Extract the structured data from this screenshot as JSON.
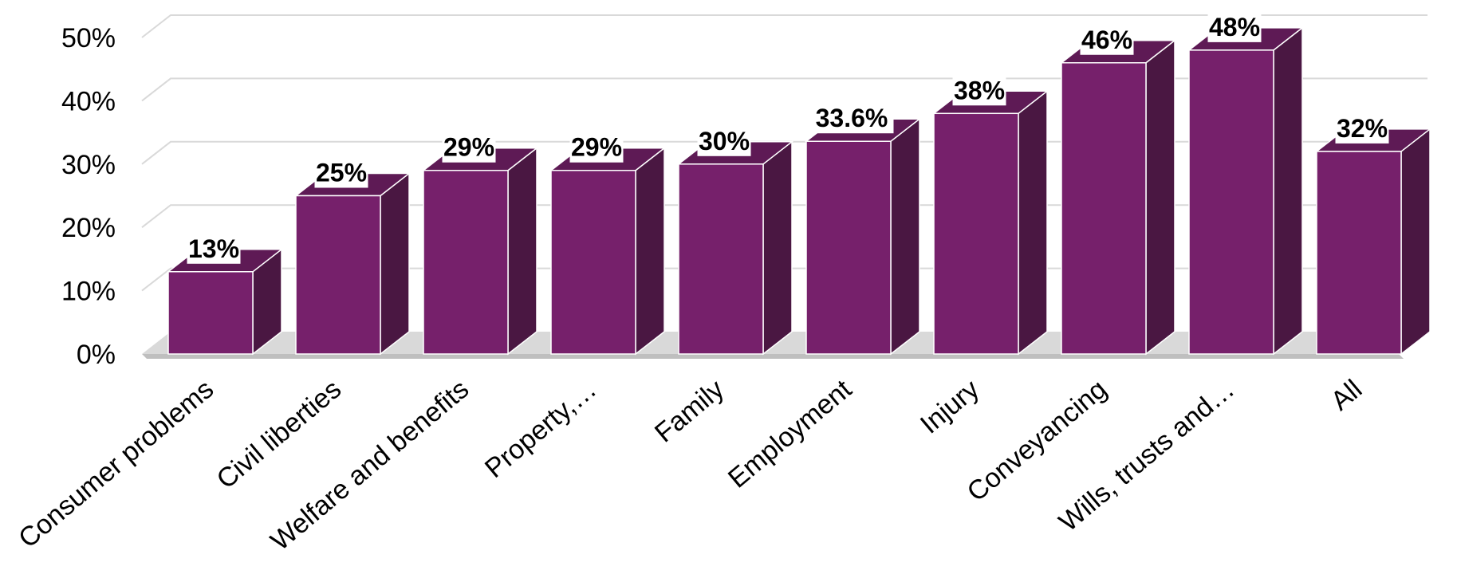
{
  "chart_data": {
    "type": "bar",
    "style": "3d-column",
    "categories": [
      "Consumer problems",
      "Civil liberties",
      "Welfare and benefits",
      "Property,…",
      "Family",
      "Employment",
      "Injury",
      "Conveyancing",
      "Wills, trusts and…",
      "All"
    ],
    "values": [
      13,
      25,
      29,
      29,
      30,
      33.6,
      38,
      46,
      48,
      32
    ],
    "data_labels": [
      "13%",
      "25%",
      "29%",
      "29%",
      "30%",
      "33.6%",
      "38%",
      "46%",
      "48%",
      "32%"
    ],
    "title": "",
    "xlabel": "",
    "ylabel": "",
    "ylim": [
      0,
      50
    ],
    "yticks": [
      0,
      10,
      20,
      30,
      40,
      50
    ],
    "ytick_labels": [
      "0%",
      "10%",
      "20%",
      "30%",
      "40%",
      "50%"
    ],
    "grid": true,
    "legend": "none",
    "colors": {
      "bar_front": "#76206B",
      "bar_side": "#4A1742",
      "bar_top": "#5E1A55",
      "grid": "#D9D9D9",
      "floor": "#BFBFBF"
    }
  }
}
